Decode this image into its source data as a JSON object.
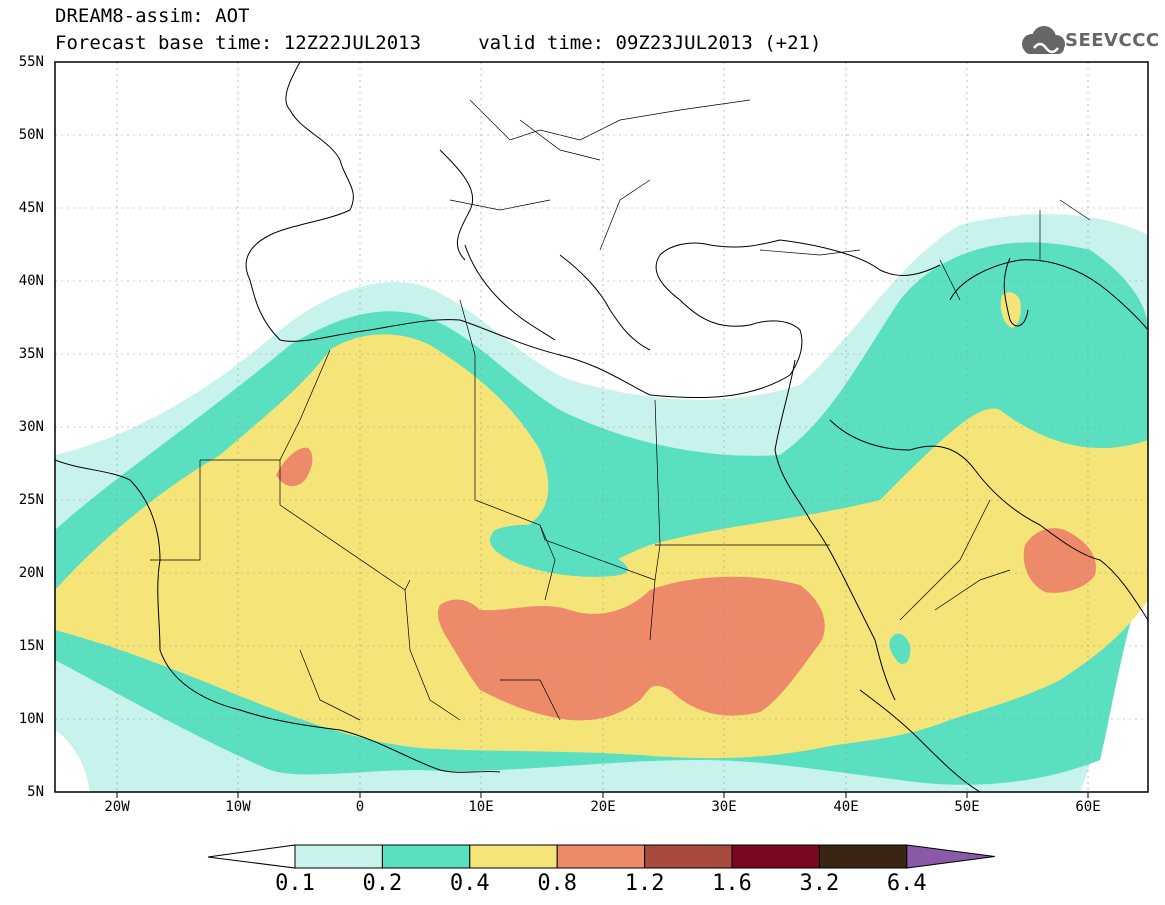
{
  "title": {
    "line1": "DREAM8-assim: AOT",
    "line2": "Forecast base time: 12Z22JUL2013     valid time: 09Z23JUL2013 (+21)"
  },
  "logo": {
    "text": "SEEVCCC",
    "icon": "cloud-icon"
  },
  "map": {
    "lon_range": [
      -25,
      65
    ],
    "lat_range": [
      5,
      55
    ],
    "lat_ticks": [
      "5N",
      "10N",
      "15N",
      "20N",
      "25N",
      "30N",
      "35N",
      "40N",
      "45N",
      "50N",
      "55N"
    ],
    "lon_ticks": [
      "20W",
      "10W",
      "0",
      "10E",
      "20E",
      "30E",
      "40E",
      "50E",
      "60E"
    ]
  },
  "colorbar": {
    "levels": [
      "0.1",
      "0.2",
      "0.4",
      "0.8",
      "1.2",
      "1.6",
      "3.2",
      "6.4"
    ],
    "colors": [
      "#c8f2ec",
      "#5ae0c0",
      "#f5e478",
      "#ec8a6a",
      "#a84a3c",
      "#7a0820",
      "#3a2414",
      "#8a5aa8"
    ]
  }
}
